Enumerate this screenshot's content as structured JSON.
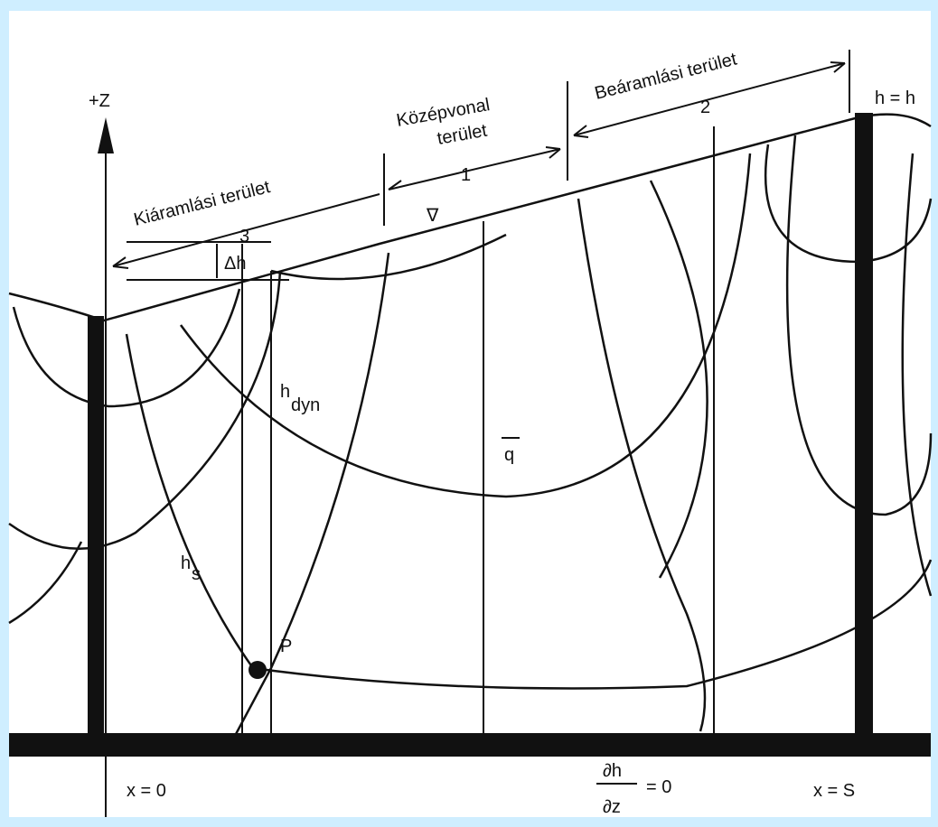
{
  "labels": {
    "z_axis": "+Z",
    "discharge_area": "Kiáramlási terület",
    "discharge_number": "3",
    "midline_area_1": "Középvonal",
    "midline_area_2": "terület",
    "midline_number": "1",
    "recharge_area": "Beáramlási terület",
    "recharge_number": "2",
    "head_top": "h = h",
    "delta_h": "Δh",
    "water_table": "∇",
    "h_dyn": "h",
    "h_dyn_sub": "dyn",
    "flux": "q",
    "h_s": "h",
    "h_s_sub": "s",
    "point": "P",
    "x_zero": "x = 0",
    "x_s": "x = S",
    "boundary_num": "∂h",
    "boundary_den": "∂z",
    "boundary_eq": "= 0"
  }
}
